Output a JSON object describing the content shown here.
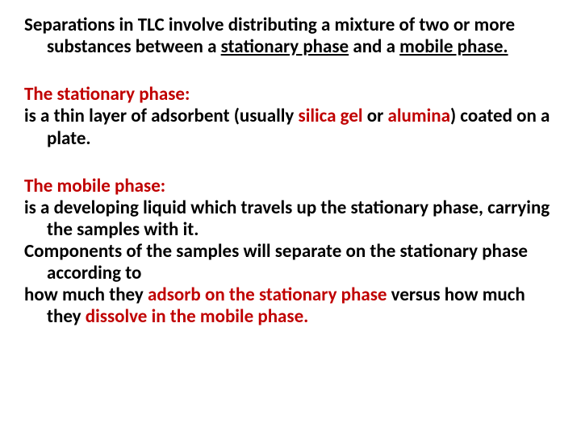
{
  "colors": {
    "heading_color": "#c00000",
    "body_color": "#000000",
    "background": "#ffffff"
  },
  "typography": {
    "font_family": "Calibri, Arial, sans-serif",
    "font_size_pt": 17,
    "font_weight": 700,
    "line_height": 1.18
  },
  "intro": {
    "pre": "Separations in TLC involve distributing a mixture of two or more substances between a ",
    "u1": "stationary phase",
    "mid": " and a ",
    "u2": "mobile phase.",
    "post": ""
  },
  "stationary": {
    "heading": "The stationary phase:",
    "body_lead": " is a thin layer of adsorbent (usually ",
    "red1": "silica gel",
    "body_mid": " or ",
    "red2": "alumina",
    "body_end": ") coated on a plate."
  },
  "mobile": {
    "heading": "The mobile phase:",
    "line1": "is a developing liquid which travels up the stationary phase, carrying the samples with it.",
    "line2": "Components of the samples will separate on the stationary phase according to",
    "line3_lead": " how much they ",
    "line3_r1": "adsorb on the stationary phase",
    "line3_mid": " versus how much they ",
    "line3_r2": "dissolve in the mobile phase."
  }
}
